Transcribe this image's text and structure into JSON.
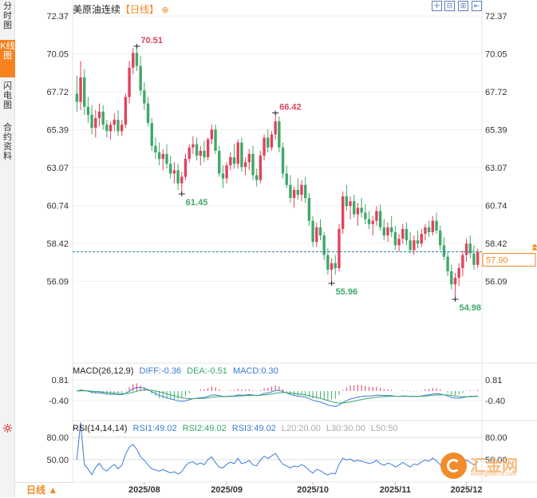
{
  "sidebar": {
    "tabs": [
      {
        "label": "分时图",
        "active": false
      },
      {
        "label": "K线图",
        "active": true
      },
      {
        "label": "闪电图",
        "active": false
      },
      {
        "label": "合约资料",
        "active": false
      }
    ]
  },
  "header": {
    "instrument": "美原油连续",
    "period": "【日线】",
    "add_symbol": "⊕"
  },
  "toolbar": [
    {
      "name": "fit-screen-icon",
      "glyph": "✛"
    },
    {
      "name": "zoom-out-icon",
      "glyph": "⊟"
    },
    {
      "name": "zoom-in-icon",
      "glyph": "⊞"
    },
    {
      "name": "back-icon",
      "glyph": "⇤"
    }
  ],
  "macd": {
    "label": "MACD(26,12,9)",
    "diff": "DIFF:-0.36",
    "dea": "DEA:-0.51",
    "macd": "MACD:0.30"
  },
  "rsi": {
    "label": "RSI(14,14,14)",
    "rsi1": "RSI1:49.02",
    "rsi2": "RSI2:49.02",
    "rsi3": "RSI3:49.02",
    "l20": "L20:20.00",
    "l30": "L30:30.00",
    "l50": "L50:50"
  },
  "period_button": "日线 ▲",
  "watermark": {
    "text": "汇金网",
    "url": "www.gold678.com"
  },
  "colors": {
    "up": "#e0435b",
    "down": "#3fa868",
    "accent": "#f08a24",
    "diff": "#3a7bd5",
    "dea": "#35a868"
  },
  "chart_data": {
    "type": "candlestick",
    "y_ticks": [
      "72.37",
      "70.05",
      "67.72",
      "65.39",
      "63.07",
      "60.74",
      "58.42",
      "56.09"
    ],
    "y_range": [
      53.76,
      72.37
    ],
    "x_ticks": [
      "2025/08",
      "2025/09",
      "2025/10",
      "2025/11",
      "2025/12"
    ],
    "current_price": "57.90",
    "annotations": [
      {
        "label": "70.51",
        "value": 70.51,
        "kind": "high"
      },
      {
        "label": "61.45",
        "value": 61.45,
        "kind": "low"
      },
      {
        "label": "66.42",
        "value": 66.42,
        "kind": "high"
      },
      {
        "label": "55.96",
        "value": 55.96,
        "kind": "low"
      },
      {
        "label": "54.98",
        "value": 54.98,
        "kind": "low"
      }
    ],
    "candles_ohlc": [
      [
        67.6,
        68.7,
        66.5,
        67.1
      ],
      [
        67.1,
        69.6,
        66.6,
        68.6
      ],
      [
        68.6,
        69.1,
        66.3,
        66.8
      ],
      [
        66.8,
        67.4,
        65.8,
        66.3
      ],
      [
        66.3,
        66.9,
        65.1,
        65.5
      ],
      [
        65.5,
        66.6,
        64.9,
        66.1
      ],
      [
        66.1,
        67.0,
        65.6,
        66.5
      ],
      [
        66.5,
        66.9,
        65.4,
        65.7
      ],
      [
        65.7,
        66.0,
        64.9,
        65.3
      ],
      [
        65.3,
        65.9,
        64.8,
        65.7
      ],
      [
        65.7,
        66.4,
        65.3,
        66.0
      ],
      [
        66.0,
        66.6,
        65.0,
        65.3
      ],
      [
        65.3,
        66.0,
        65.0,
        65.7
      ],
      [
        65.7,
        67.6,
        65.5,
        67.4
      ],
      [
        67.4,
        69.6,
        67.0,
        69.2
      ],
      [
        69.2,
        70.4,
        68.8,
        70.1
      ],
      [
        70.1,
        70.51,
        69.0,
        69.3
      ],
      [
        69.3,
        69.9,
        67.5,
        67.8
      ],
      [
        67.8,
        68.3,
        66.6,
        67.0
      ],
      [
        67.0,
        67.4,
        65.6,
        65.8
      ],
      [
        65.8,
        66.1,
        64.1,
        64.4
      ],
      [
        64.4,
        64.9,
        63.6,
        64.0
      ],
      [
        64.0,
        64.6,
        63.2,
        63.6
      ],
      [
        63.6,
        64.2,
        62.9,
        63.9
      ],
      [
        63.9,
        64.5,
        63.0,
        63.3
      ],
      [
        63.3,
        63.8,
        62.4,
        62.7
      ],
      [
        62.7,
        63.4,
        62.1,
        62.9
      ],
      [
        62.9,
        63.3,
        61.7,
        62.1
      ],
      [
        62.1,
        62.8,
        61.45,
        62.5
      ],
      [
        62.5,
        63.9,
        62.3,
        63.6
      ],
      [
        63.6,
        64.5,
        63.4,
        64.3
      ],
      [
        64.3,
        65.0,
        63.9,
        64.5
      ],
      [
        64.5,
        64.9,
        63.5,
        63.8
      ],
      [
        63.8,
        64.4,
        63.2,
        64.1
      ],
      [
        64.1,
        64.7,
        63.4,
        63.7
      ],
      [
        63.7,
        64.9,
        63.5,
        64.8
      ],
      [
        64.8,
        65.7,
        64.5,
        65.4
      ],
      [
        65.4,
        65.7,
        63.9,
        64.1
      ],
      [
        64.1,
        64.4,
        62.5,
        62.7
      ],
      [
        62.7,
        63.2,
        61.8,
        62.4
      ],
      [
        62.4,
        63.4,
        62.1,
        63.2
      ],
      [
        63.2,
        64.0,
        62.9,
        63.7
      ],
      [
        63.7,
        64.5,
        63.0,
        63.3
      ],
      [
        63.3,
        64.8,
        63.0,
        64.6
      ],
      [
        64.6,
        64.9,
        62.8,
        63.1
      ],
      [
        63.1,
        63.7,
        62.6,
        63.4
      ],
      [
        63.4,
        64.2,
        62.9,
        63.9
      ],
      [
        63.9,
        64.4,
        62.3,
        62.6
      ],
      [
        62.6,
        63.0,
        61.9,
        62.3
      ],
      [
        62.3,
        64.1,
        62.1,
        63.8
      ],
      [
        63.8,
        65.1,
        63.5,
        64.9
      ],
      [
        64.9,
        65.4,
        64.0,
        64.3
      ],
      [
        64.3,
        65.3,
        64.1,
        65.1
      ],
      [
        65.1,
        66.42,
        64.8,
        65.9
      ],
      [
        65.9,
        66.2,
        64.0,
        64.3
      ],
      [
        64.3,
        64.6,
        62.4,
        62.7
      ],
      [
        62.7,
        63.2,
        61.8,
        62.0
      ],
      [
        62.0,
        62.6,
        60.9,
        61.2
      ],
      [
        61.2,
        61.9,
        60.6,
        61.7
      ],
      [
        61.7,
        62.4,
        61.1,
        61.4
      ],
      [
        61.4,
        62.3,
        61.0,
        62.0
      ],
      [
        62.0,
        62.5,
        60.9,
        61.2
      ],
      [
        61.2,
        61.5,
        59.5,
        59.8
      ],
      [
        59.8,
        60.1,
        58.2,
        58.5
      ],
      [
        58.5,
        59.7,
        58.2,
        59.4
      ],
      [
        59.4,
        59.9,
        58.6,
        58.9
      ],
      [
        58.9,
        59.1,
        57.4,
        57.7
      ],
      [
        57.7,
        58.1,
        56.5,
        56.8
      ],
      [
        56.8,
        57.5,
        55.96,
        57.2
      ],
      [
        57.2,
        57.7,
        56.5,
        56.9
      ],
      [
        56.9,
        59.6,
        56.7,
        59.3
      ],
      [
        59.3,
        61.6,
        59.0,
        61.3
      ],
      [
        61.3,
        62.0,
        60.4,
        60.7
      ],
      [
        60.7,
        61.3,
        59.9,
        61.0
      ],
      [
        61.0,
        61.4,
        60.0,
        60.2
      ],
      [
        60.2,
        60.9,
        59.5,
        60.6
      ],
      [
        60.6,
        61.2,
        60.0,
        60.3
      ],
      [
        60.3,
        60.8,
        59.6,
        59.9
      ],
      [
        59.9,
        60.4,
        59.3,
        59.6
      ],
      [
        59.6,
        60.1,
        58.9,
        59.8
      ],
      [
        59.8,
        60.7,
        59.5,
        60.4
      ],
      [
        60.4,
        60.8,
        59.2,
        59.4
      ],
      [
        59.4,
        59.9,
        58.6,
        58.9
      ],
      [
        58.9,
        59.7,
        58.5,
        59.4
      ],
      [
        59.4,
        60.1,
        58.8,
        59.1
      ],
      [
        59.1,
        59.5,
        58.0,
        58.3
      ],
      [
        58.3,
        59.0,
        57.9,
        58.7
      ],
      [
        58.7,
        59.6,
        58.4,
        59.3
      ],
      [
        59.3,
        59.7,
        58.3,
        58.6
      ],
      [
        58.6,
        59.1,
        57.8,
        58.0
      ],
      [
        58.0,
        58.9,
        57.7,
        58.6
      ],
      [
        58.6,
        59.2,
        58.1,
        58.4
      ],
      [
        58.4,
        59.3,
        58.2,
        59.0
      ],
      [
        59.0,
        59.6,
        58.6,
        59.4
      ],
      [
        59.4,
        59.8,
        58.8,
        59.1
      ],
      [
        59.1,
        60.1,
        58.9,
        59.8
      ],
      [
        59.8,
        60.3,
        59.0,
        59.2
      ],
      [
        59.2,
        59.5,
        58.0,
        58.3
      ],
      [
        58.3,
        58.8,
        57.4,
        57.6
      ],
      [
        57.6,
        57.9,
        56.4,
        56.7
      ],
      [
        56.7,
        57.1,
        55.6,
        55.9
      ],
      [
        55.9,
        56.6,
        54.98,
        56.3
      ],
      [
        56.3,
        57.2,
        55.8,
        56.9
      ],
      [
        56.9,
        58.0,
        56.4,
        57.7
      ],
      [
        57.7,
        58.7,
        57.3,
        58.4
      ],
      [
        58.4,
        58.9,
        57.5,
        57.8
      ],
      [
        57.8,
        58.3,
        56.8,
        57.1
      ],
      [
        57.1,
        58.1,
        56.9,
        57.9
      ]
    ]
  }
}
